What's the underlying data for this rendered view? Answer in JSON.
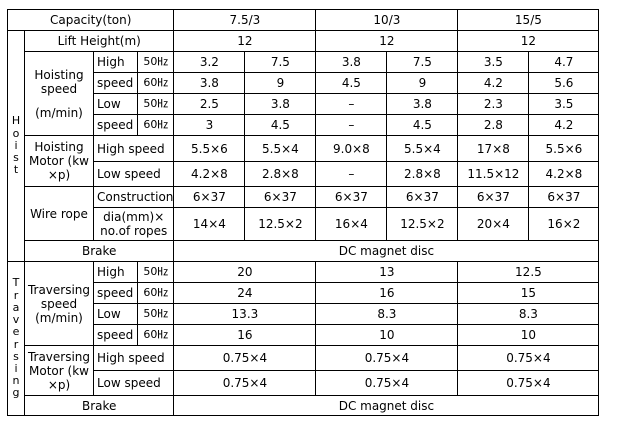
{
  "header": {
    "capacity_label": "Capacity(ton)",
    "capacities": [
      "7.5/3",
      "10/3",
      "15/5"
    ]
  },
  "hoist": {
    "side_label": "H o i s t",
    "side_chars": [
      "H",
      "o",
      "i",
      "s",
      "t"
    ],
    "lift_height": {
      "label": "Lift Height(m)",
      "values": [
        "12",
        "12",
        "12"
      ]
    },
    "hoisting_speed": {
      "label_line1": "Hoisting",
      "label_line2": "speed",
      "unit": "(m/min)",
      "rows": [
        {
          "mode": "High",
          "hz": "50㎐",
          "values": [
            "3.2",
            "7.5",
            "3.8",
            "7.5",
            "3.5",
            "4.7"
          ]
        },
        {
          "mode": "speed",
          "hz": "60㎐",
          "values": [
            "3.8",
            "9",
            "4.5",
            "9",
            "4.2",
            "5.6"
          ]
        },
        {
          "mode": "Low",
          "hz": "50㎐",
          "values": [
            "2.5",
            "3.8",
            "–",
            "3.8",
            "2.3",
            "3.5"
          ]
        },
        {
          "mode": "speed",
          "hz": "60㎐",
          "values": [
            "3",
            "4.5",
            "–",
            "4.5",
            "2.8",
            "4.2"
          ]
        }
      ]
    },
    "hoisting_motor": {
      "label_line1": "Hoisting",
      "label_line2": "Motor (kw",
      "label_line3": "×p)",
      "rows": [
        {
          "mode": "High speed",
          "values": [
            "5.5×6",
            "5.5×4",
            "9.0×8",
            "5.5×4",
            "17×8",
            "5.5×6"
          ]
        },
        {
          "mode": "Low speed",
          "values": [
            "4.2×8",
            "2.8×8",
            "–",
            "2.8×8",
            "11.5×12",
            "4.2×8"
          ]
        }
      ]
    },
    "wire_rope": {
      "label": "Wire rope",
      "construction_label": "Construction",
      "construction_values": [
        "6×37",
        "6×37",
        "6×37",
        "6×37",
        "6×37",
        "6×37"
      ],
      "dia_label_line1": "dia(mm)×",
      "dia_label_line2": "no.of ropes",
      "dia_values": [
        "14×4",
        "12.5×2",
        "16×4",
        "12.5×2",
        "20×4",
        "16×2"
      ]
    },
    "brake": {
      "label": "Brake",
      "value": "DC magnet disc"
    }
  },
  "traversing": {
    "side_label": "T r a v e r s i n g",
    "side_chars": [
      "T",
      "r",
      "a",
      "v",
      "e",
      "r",
      "s",
      "i",
      "n",
      "g"
    ],
    "traversing_speed": {
      "label_line1": "Traversing",
      "label_line2": "speed",
      "unit": "(m/min)",
      "rows": [
        {
          "mode": "High",
          "hz": "50㎐",
          "values": [
            "20",
            "13",
            "12.5"
          ]
        },
        {
          "mode": "speed",
          "hz": "60㎐",
          "values": [
            "24",
            "16",
            "15"
          ]
        },
        {
          "mode": "Low",
          "hz": "50㎐",
          "values": [
            "13.3",
            "8.3",
            "8.3"
          ]
        },
        {
          "mode": "speed",
          "hz": "60㎐",
          "values": [
            "16",
            "10",
            "10"
          ]
        }
      ]
    },
    "traversing_motor": {
      "label_line1": "Traversing",
      "label_line2": "Motor (kw",
      "label_line3": "×p)",
      "rows": [
        {
          "mode": "High speed",
          "values": [
            "0.75×4",
            "0.75×4",
            "0.75×4"
          ]
        },
        {
          "mode": "Low speed",
          "values": [
            "0.75×4",
            "0.75×4",
            "0.75×4"
          ]
        }
      ]
    },
    "brake": {
      "label": "Brake",
      "value": "DC magnet disc"
    }
  }
}
